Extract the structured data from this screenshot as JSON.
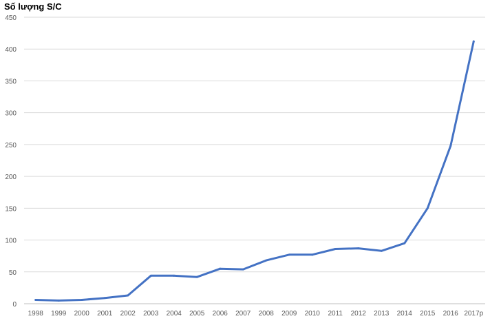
{
  "chart_data": {
    "type": "line",
    "title": "",
    "ylabel": "Số lượng S/C",
    "xlabel": "",
    "categories": [
      "1998",
      "1999",
      "2000",
      "2001",
      "2002",
      "2003",
      "2004",
      "2005",
      "2006",
      "2007",
      "2008",
      "2009",
      "2010",
      "2011",
      "2012",
      "2013",
      "2014",
      "2015",
      "2016",
      "2017p"
    ],
    "series": [
      {
        "values": [
          6,
          5,
          6,
          9,
          13,
          44,
          44,
          42,
          55,
          54,
          68,
          77,
          77,
          86,
          87,
          83,
          95,
          150,
          248,
          412
        ]
      }
    ],
    "ylim": [
      0,
      450
    ],
    "yticks": [
      0,
      50,
      100,
      150,
      200,
      250,
      300,
      350,
      400,
      450
    ],
    "grid": true,
    "legend": "none",
    "colors": {
      "line": "#4472c4",
      "grid": "#d9d9d9",
      "axis": "#bfbfbf",
      "tick_text": "#595959"
    }
  }
}
